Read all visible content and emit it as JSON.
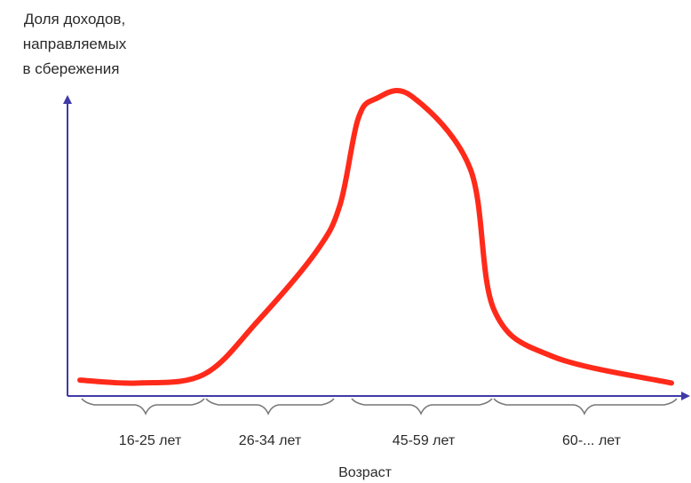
{
  "chart_data": {
    "type": "line",
    "title": "",
    "ylabel_lines": [
      "Доля доходов,",
      "направляемых",
      "в сбережения"
    ],
    "xlabel": "Возраст",
    "x_groups": [
      {
        "label": "16-25 лет"
      },
      {
        "label": "26-34 лет"
      },
      {
        "label": "45-59 лет"
      },
      {
        "label": "60-... лет"
      }
    ],
    "series": [
      {
        "color": "#ff2a1a",
        "points": [
          {
            "x": 0.0,
            "y": 0.03
          },
          {
            "x": 0.1,
            "y": 0.02
          },
          {
            "x": 0.21,
            "y": 0.05
          },
          {
            "x": 0.3,
            "y": 0.23
          },
          {
            "x": 0.4,
            "y": 0.47
          },
          {
            "x": 0.44,
            "y": 0.63
          },
          {
            "x": 0.47,
            "y": 0.92
          },
          {
            "x": 0.5,
            "y": 0.99
          },
          {
            "x": 0.56,
            "y": 1.0
          },
          {
            "x": 0.66,
            "y": 0.75
          },
          {
            "x": 0.7,
            "y": 0.27
          },
          {
            "x": 0.8,
            "y": 0.11
          },
          {
            "x": 1.0,
            "y": 0.02
          }
        ]
      }
    ],
    "xlim": [
      0,
      1
    ],
    "ylim": [
      0,
      1.0
    ],
    "axis_color": "#3f3aa6",
    "brace_color": "#777777",
    "grid": false,
    "legend": "none"
  }
}
